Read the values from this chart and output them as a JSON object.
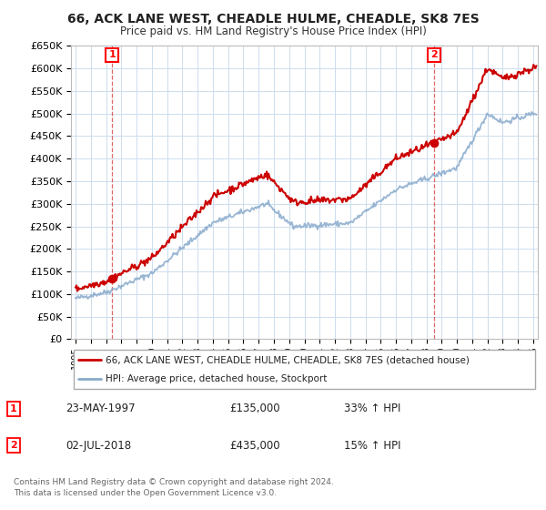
{
  "title": "66, ACK LANE WEST, CHEADLE HULME, CHEADLE, SK8 7ES",
  "subtitle": "Price paid vs. HM Land Registry's House Price Index (HPI)",
  "ylim": [
    0,
    650000
  ],
  "yticks": [
    0,
    50000,
    100000,
    150000,
    200000,
    250000,
    300000,
    350000,
    400000,
    450000,
    500000,
    550000,
    600000,
    650000
  ],
  "xlim_start": 1994.7,
  "xlim_end": 2025.3,
  "legend_entry1": "66, ACK LANE WEST, CHEADLE HULME, CHEADLE, SK8 7ES (detached house)",
  "legend_entry2": "HPI: Average price, detached house, Stockport",
  "transaction1_date": 1997.39,
  "transaction1_price": 135000,
  "transaction2_date": 2018.5,
  "transaction2_price": 435000,
  "annotation1_date": "23-MAY-1997",
  "annotation1_price": "£135,000",
  "annotation1_hpi": "33% ↑ HPI",
  "annotation2_date": "02-JUL-2018",
  "annotation2_price": "£435,000",
  "annotation2_hpi": "15% ↑ HPI",
  "footer": "Contains HM Land Registry data © Crown copyright and database right 2024.\nThis data is licensed under the Open Government Licence v3.0.",
  "line1_color": "#cc0000",
  "line2_color": "#88aacc",
  "background_color": "#ffffff",
  "grid_color": "#ccddee",
  "vline_color": "#cc0000"
}
